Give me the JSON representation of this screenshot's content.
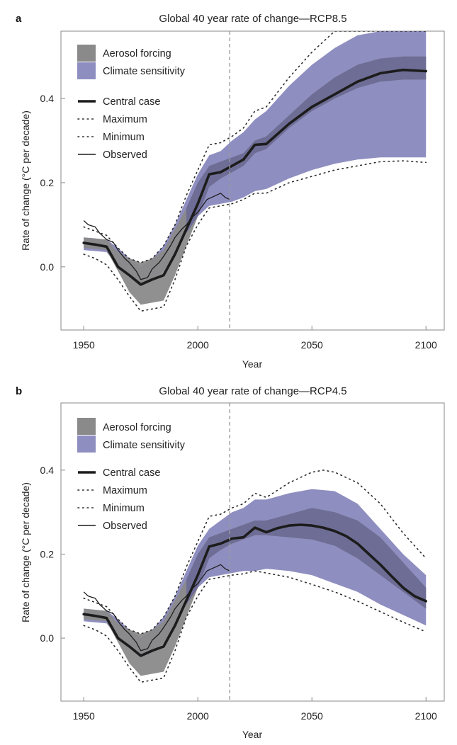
{
  "figure": {
    "caption": ""
  },
  "colors": {
    "aerosol": "#8a8a8a",
    "sensitivity": "#8f8ec0",
    "overlap": "#6e6d96",
    "central": "#1c1c1c",
    "bounds": "#2b2b2b",
    "observed": "#1c1c1c",
    "vline": "#9a9a9a",
    "frame": "#8a8a8a"
  },
  "chart_data": [
    {
      "type": "area",
      "panel_label": "a",
      "title": "Global 40 year rate of change—RCP8.5",
      "xlabel": "Year",
      "ylabel": "Rate of change (°C per decade)",
      "xlim": [
        1940,
        2108
      ],
      "ylim": [
        -0.15,
        0.56
      ],
      "xticks": [
        1950,
        2000,
        2050,
        2100
      ],
      "xtick_labels": [
        "1950",
        "2000",
        "2050",
        "2100"
      ],
      "yticks": [
        0.0,
        0.2,
        0.4
      ],
      "ytick_labels": [
        "0.0",
        "0.2",
        "0.4"
      ],
      "vline_x": 2014,
      "legend": {
        "position": "top-left",
        "entries": [
          {
            "label": "Aerosol forcing",
            "style": "patch-aerosol"
          },
          {
            "label": "Climate sensitivity",
            "style": "patch-sensitivity"
          },
          {
            "label": "Central case",
            "style": "thick-line"
          },
          {
            "label": "Maximum",
            "style": "dotted-line"
          },
          {
            "label": "Minimum",
            "style": "dotted-line"
          },
          {
            "label": "Observed",
            "style": "thin-line"
          }
        ]
      },
      "series": [
        {
          "name": "Climate sensitivity",
          "kind": "band",
          "x": [
            1950,
            1960,
            1965,
            1970,
            1975,
            1980,
            1985,
            1990,
            1995,
            2000,
            2005,
            2010,
            2015,
            2020,
            2025,
            2030,
            2040,
            2050,
            2060,
            2070,
            2080,
            2090,
            2100
          ],
          "lower": [
            0.04,
            0.035,
            0.0,
            -0.02,
            -0.04,
            -0.03,
            -0.01,
            0.03,
            0.08,
            0.12,
            0.145,
            0.15,
            0.155,
            0.165,
            0.18,
            0.185,
            0.21,
            0.23,
            0.245,
            0.255,
            0.26,
            0.26,
            0.26
          ],
          "upper": [
            0.07,
            0.065,
            0.045,
            0.02,
            0.0,
            0.02,
            0.05,
            0.1,
            0.16,
            0.22,
            0.265,
            0.275,
            0.3,
            0.32,
            0.35,
            0.37,
            0.43,
            0.48,
            0.52,
            0.55,
            0.56,
            0.56,
            0.56
          ]
        },
        {
          "name": "Aerosol forcing",
          "kind": "band",
          "x": [
            1950,
            1960,
            1965,
            1970,
            1975,
            1980,
            1985,
            1990,
            1995,
            2000,
            2005,
            2010,
            2015,
            2020,
            2025,
            2030,
            2040,
            2050,
            2060,
            2070,
            2080,
            2090,
            2100
          ],
          "lower": [
            0.045,
            0.04,
            -0.01,
            -0.06,
            -0.09,
            -0.085,
            -0.08,
            -0.02,
            0.05,
            0.12,
            0.19,
            0.21,
            0.225,
            0.24,
            0.27,
            0.28,
            0.33,
            0.37,
            0.4,
            0.425,
            0.44,
            0.445,
            0.445
          ],
          "upper": [
            0.07,
            0.065,
            0.035,
            0.02,
            0.01,
            0.02,
            0.04,
            0.09,
            0.14,
            0.2,
            0.24,
            0.25,
            0.26,
            0.27,
            0.3,
            0.31,
            0.36,
            0.41,
            0.45,
            0.48,
            0.495,
            0.5,
            0.5
          ]
        },
        {
          "name": "Central case",
          "kind": "line",
          "x": [
            1950,
            1955,
            1960,
            1965,
            1970,
            1975,
            1980,
            1985,
            1990,
            1995,
            2000,
            2005,
            2010,
            2015,
            2020,
            2025,
            2030,
            2040,
            2050,
            2060,
            2070,
            2080,
            2090,
            2100
          ],
          "y": [
            0.057,
            0.053,
            0.048,
            0.0,
            -0.02,
            -0.042,
            -0.03,
            -0.02,
            0.03,
            0.09,
            0.15,
            0.22,
            0.225,
            0.24,
            0.255,
            0.29,
            0.292,
            0.34,
            0.38,
            0.41,
            0.44,
            0.46,
            0.468,
            0.465
          ]
        },
        {
          "name": "Maximum",
          "kind": "dotted",
          "x": [
            1950,
            1955,
            1960,
            1965,
            1970,
            1975,
            1980,
            1985,
            1990,
            1995,
            2000,
            2005,
            2010,
            2015,
            2020,
            2025,
            2030,
            2040,
            2050,
            2060,
            2070,
            2080,
            2090,
            2100
          ],
          "y": [
            0.095,
            0.085,
            0.075,
            0.045,
            0.02,
            0.01,
            0.02,
            0.05,
            0.1,
            0.17,
            0.23,
            0.29,
            0.295,
            0.31,
            0.33,
            0.37,
            0.38,
            0.45,
            0.51,
            0.56,
            0.56,
            0.56,
            0.56,
            0.56
          ]
        },
        {
          "name": "Minimum",
          "kind": "dotted",
          "x": [
            1950,
            1955,
            1960,
            1965,
            1970,
            1975,
            1980,
            1985,
            1990,
            1995,
            2000,
            2005,
            2010,
            2015,
            2020,
            2025,
            2030,
            2040,
            2050,
            2060,
            2070,
            2080,
            2090,
            2100
          ],
          "y": [
            0.03,
            0.02,
            0.005,
            -0.03,
            -0.07,
            -0.105,
            -0.1,
            -0.095,
            -0.03,
            0.05,
            0.1,
            0.14,
            0.145,
            0.15,
            0.16,
            0.175,
            0.175,
            0.2,
            0.215,
            0.23,
            0.24,
            0.25,
            0.252,
            0.248
          ]
        },
        {
          "name": "Observed",
          "kind": "line-thin",
          "x": [
            1950,
            1952,
            1955,
            1957,
            1960,
            1963,
            1965,
            1968,
            1970,
            1973,
            1975,
            1978,
            1980,
            1983,
            1985,
            1988,
            1990,
            1993,
            1995,
            1998,
            2000,
            2002,
            2004,
            2006,
            2008,
            2010,
            2012,
            2014
          ],
          "y": [
            0.11,
            0.1,
            0.095,
            0.08,
            0.065,
            0.058,
            0.04,
            0.02,
            0.01,
            -0.01,
            -0.03,
            -0.025,
            -0.005,
            0.01,
            0.025,
            0.05,
            0.07,
            0.09,
            0.1,
            0.12,
            0.13,
            0.145,
            0.16,
            0.165,
            0.17,
            0.175,
            0.165,
            0.16
          ]
        }
      ]
    },
    {
      "type": "area",
      "panel_label": "b",
      "title": "Global 40 year rate of change—RCP4.5",
      "xlabel": "Year",
      "ylabel": "Rate of change (°C per decade)",
      "xlim": [
        1940,
        2108
      ],
      "ylim": [
        -0.15,
        0.56
      ],
      "xticks": [
        1950,
        2000,
        2050,
        2100
      ],
      "xtick_labels": [
        "1950",
        "2000",
        "2050",
        "2100"
      ],
      "yticks": [
        0.0,
        0.2,
        0.4
      ],
      "ytick_labels": [
        "0.0",
        "0.2",
        "0.4"
      ],
      "vline_x": 2014,
      "legend": {
        "position": "top-left",
        "entries": [
          {
            "label": "Aerosol forcing",
            "style": "patch-aerosol"
          },
          {
            "label": "Climate sensitivity",
            "style": "patch-sensitivity"
          },
          {
            "label": "Central case",
            "style": "thick-line"
          },
          {
            "label": "Maximum",
            "style": "dotted-line"
          },
          {
            "label": "Minimum",
            "style": "dotted-line"
          },
          {
            "label": "Observed",
            "style": "thin-line"
          }
        ]
      },
      "series": [
        {
          "name": "Climate sensitivity",
          "kind": "band",
          "x": [
            1950,
            1960,
            1965,
            1970,
            1975,
            1980,
            1985,
            1990,
            1995,
            2000,
            2005,
            2010,
            2015,
            2020,
            2025,
            2030,
            2040,
            2050,
            2060,
            2070,
            2080,
            2090,
            2100
          ],
          "lower": [
            0.04,
            0.035,
            0.0,
            -0.02,
            -0.04,
            -0.03,
            -0.01,
            0.03,
            0.08,
            0.12,
            0.145,
            0.15,
            0.155,
            0.16,
            0.16,
            0.165,
            0.16,
            0.15,
            0.13,
            0.11,
            0.08,
            0.055,
            0.03
          ],
          "upper": [
            0.07,
            0.065,
            0.045,
            0.02,
            0.0,
            0.02,
            0.05,
            0.1,
            0.16,
            0.22,
            0.26,
            0.28,
            0.3,
            0.31,
            0.33,
            0.33,
            0.345,
            0.355,
            0.35,
            0.32,
            0.26,
            0.2,
            0.15
          ]
        },
        {
          "name": "Aerosol forcing",
          "kind": "band",
          "x": [
            1950,
            1960,
            1965,
            1970,
            1975,
            1980,
            1985,
            1990,
            1995,
            2000,
            2005,
            2010,
            2015,
            2020,
            2025,
            2030,
            2040,
            2050,
            2060,
            2070,
            2080,
            2090,
            2100
          ],
          "lower": [
            0.045,
            0.04,
            -0.01,
            -0.06,
            -0.09,
            -0.085,
            -0.08,
            -0.02,
            0.05,
            0.12,
            0.19,
            0.21,
            0.225,
            0.235,
            0.245,
            0.245,
            0.24,
            0.235,
            0.22,
            0.19,
            0.15,
            0.11,
            0.07
          ],
          "upper": [
            0.07,
            0.065,
            0.035,
            0.02,
            0.01,
            0.02,
            0.04,
            0.09,
            0.14,
            0.2,
            0.24,
            0.25,
            0.26,
            0.27,
            0.28,
            0.28,
            0.295,
            0.31,
            0.3,
            0.28,
            0.24,
            0.18,
            0.12
          ]
        },
        {
          "name": "Central case",
          "kind": "line",
          "x": [
            1950,
            1955,
            1960,
            1965,
            1970,
            1975,
            1980,
            1985,
            1990,
            1995,
            2000,
            2005,
            2010,
            2015,
            2020,
            2025,
            2030,
            2035,
            2040,
            2045,
            2050,
            2055,
            2060,
            2065,
            2070,
            2075,
            2080,
            2085,
            2090,
            2095,
            2100
          ],
          "y": [
            0.057,
            0.053,
            0.048,
            0.0,
            -0.02,
            -0.042,
            -0.03,
            -0.02,
            0.03,
            0.09,
            0.15,
            0.218,
            0.225,
            0.237,
            0.24,
            0.263,
            0.252,
            0.262,
            0.268,
            0.27,
            0.268,
            0.263,
            0.255,
            0.243,
            0.225,
            0.2,
            0.175,
            0.147,
            0.12,
            0.1,
            0.088
          ]
        },
        {
          "name": "Maximum",
          "kind": "dotted",
          "x": [
            1950,
            1955,
            1960,
            1965,
            1970,
            1975,
            1980,
            1985,
            1990,
            1995,
            2000,
            2005,
            2010,
            2015,
            2020,
            2025,
            2030,
            2040,
            2050,
            2055,
            2060,
            2070,
            2080,
            2090,
            2100
          ],
          "y": [
            0.095,
            0.085,
            0.075,
            0.045,
            0.02,
            0.01,
            0.02,
            0.05,
            0.1,
            0.17,
            0.23,
            0.29,
            0.295,
            0.31,
            0.32,
            0.345,
            0.335,
            0.37,
            0.395,
            0.4,
            0.395,
            0.37,
            0.32,
            0.25,
            0.19
          ]
        },
        {
          "name": "Minimum",
          "kind": "dotted",
          "x": [
            1950,
            1955,
            1960,
            1965,
            1970,
            1975,
            1980,
            1985,
            1990,
            1995,
            2000,
            2005,
            2010,
            2015,
            2020,
            2025,
            2030,
            2040,
            2050,
            2060,
            2070,
            2080,
            2090,
            2100
          ],
          "y": [
            0.03,
            0.02,
            0.005,
            -0.03,
            -0.07,
            -0.105,
            -0.1,
            -0.095,
            -0.03,
            0.05,
            0.1,
            0.14,
            0.145,
            0.15,
            0.153,
            0.16,
            0.155,
            0.145,
            0.128,
            0.11,
            0.088,
            0.063,
            0.038,
            0.015
          ]
        },
        {
          "name": "Observed",
          "kind": "line-thin",
          "x": [
            1950,
            1952,
            1955,
            1957,
            1960,
            1963,
            1965,
            1968,
            1970,
            1973,
            1975,
            1978,
            1980,
            1983,
            1985,
            1988,
            1990,
            1993,
            1995,
            1998,
            2000,
            2002,
            2004,
            2006,
            2008,
            2010,
            2012,
            2014
          ],
          "y": [
            0.11,
            0.1,
            0.095,
            0.08,
            0.065,
            0.058,
            0.04,
            0.02,
            0.01,
            -0.01,
            -0.03,
            -0.025,
            -0.005,
            0.01,
            0.025,
            0.05,
            0.07,
            0.09,
            0.1,
            0.12,
            0.13,
            0.145,
            0.16,
            0.165,
            0.17,
            0.175,
            0.165,
            0.16
          ]
        }
      ]
    }
  ]
}
